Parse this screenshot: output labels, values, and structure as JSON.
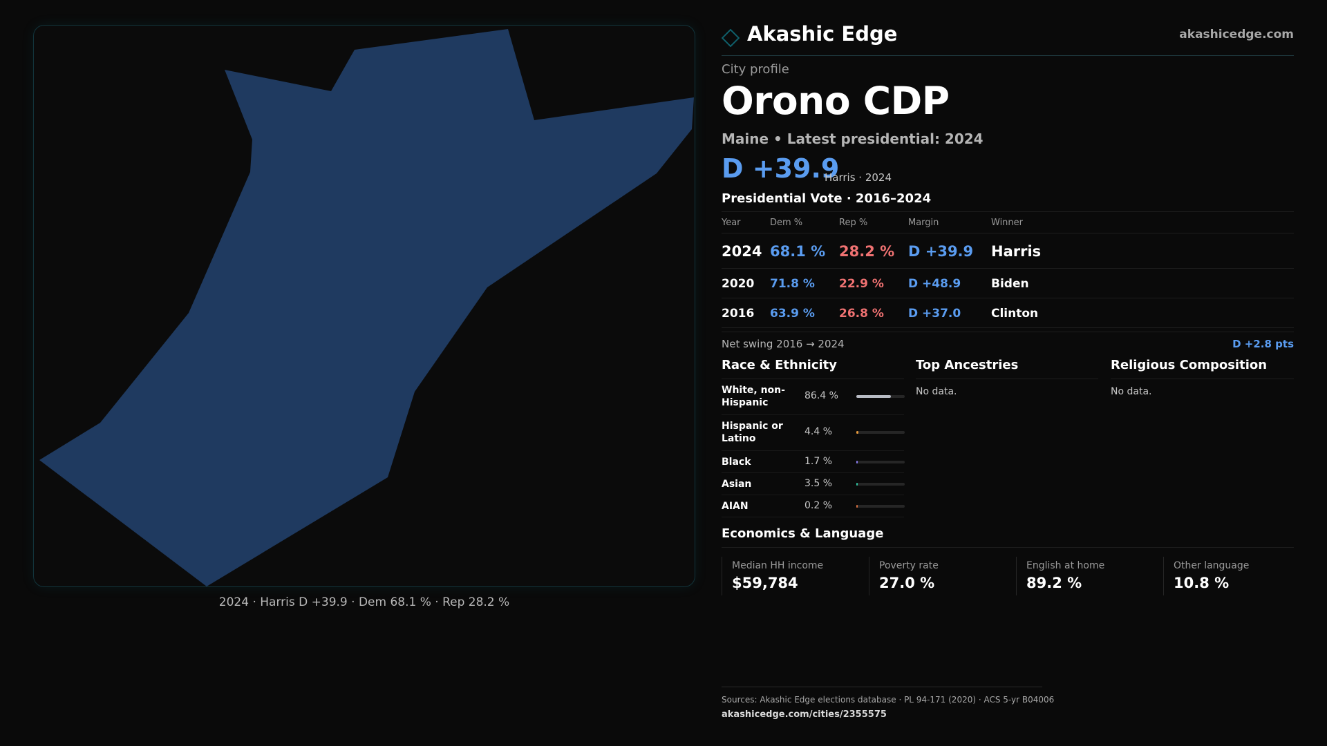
{
  "brand": {
    "name": "Akashic Edge",
    "site": "akashicedge.com",
    "icon": "diamond-icon",
    "accent": "#0e4a55"
  },
  "profile": {
    "eyebrow": "City profile",
    "title": "Orono CDP",
    "subtitle": "Maine • Latest presidential: 2024",
    "headline_margin": "D +39.9",
    "headline_note": "Harris · 2024"
  },
  "map": {
    "caption": "2024 · Harris D +39.9 · Dem 68.1 % · Rep 28.2 %",
    "fill_color": "#1f3a60"
  },
  "vote": {
    "title": "Presidential Vote · 2016–2024",
    "columns": [
      "Year",
      "Dem %",
      "Rep %",
      "Margin",
      "Winner"
    ],
    "rows": [
      {
        "year": "2024",
        "dem": "68.1 %",
        "rep": "28.2 %",
        "margin": "D +39.9",
        "winner": "Harris"
      },
      {
        "year": "2020",
        "dem": "71.8 %",
        "rep": "22.9 %",
        "margin": "D +48.9",
        "winner": "Biden"
      },
      {
        "year": "2016",
        "dem": "63.9 %",
        "rep": "26.8 %",
        "margin": "D +37.0",
        "winner": "Clinton"
      }
    ],
    "swing_label": "Net swing 2016 → 2024",
    "swing_value": "D +2.8 pts",
    "colors": {
      "dem": "#5a9cf0",
      "rep": "#f07272"
    }
  },
  "race": {
    "title": "Race & Ethnicity",
    "items": [
      {
        "label": "White, non-Hispanic",
        "pct": "86.4 %",
        "value": 86.4,
        "color": "#b8bcc4"
      },
      {
        "label": "Hispanic or Latino",
        "pct": "4.4 %",
        "value": 4.4,
        "color": "#e89a3c"
      },
      {
        "label": "Black",
        "pct": "1.7 %",
        "value": 1.7,
        "color": "#8a7cf0"
      },
      {
        "label": "Asian",
        "pct": "3.5 %",
        "value": 3.5,
        "color": "#2fc4a0"
      },
      {
        "label": "AIAN",
        "pct": "0.2 %",
        "value": 0.2,
        "color": "#d87040"
      }
    ]
  },
  "ancestries": {
    "title": "Top Ancestries",
    "empty": "No data."
  },
  "religion": {
    "title": "Religious Composition",
    "empty": "No data."
  },
  "economics": {
    "title": "Economics & Language",
    "stats": [
      {
        "label": "Median HH income",
        "value": "$59,784"
      },
      {
        "label": "Poverty rate",
        "value": "27.0 %"
      },
      {
        "label": "English at home",
        "value": "89.2 %"
      },
      {
        "label": "Other language",
        "value": "10.8 %"
      }
    ]
  },
  "footer": {
    "sources": "Sources: Akashic Edge elections database · PL 94-171 (2020) · ACS 5-yr B04006",
    "url": "akashicedge.com/cities/2355575"
  }
}
